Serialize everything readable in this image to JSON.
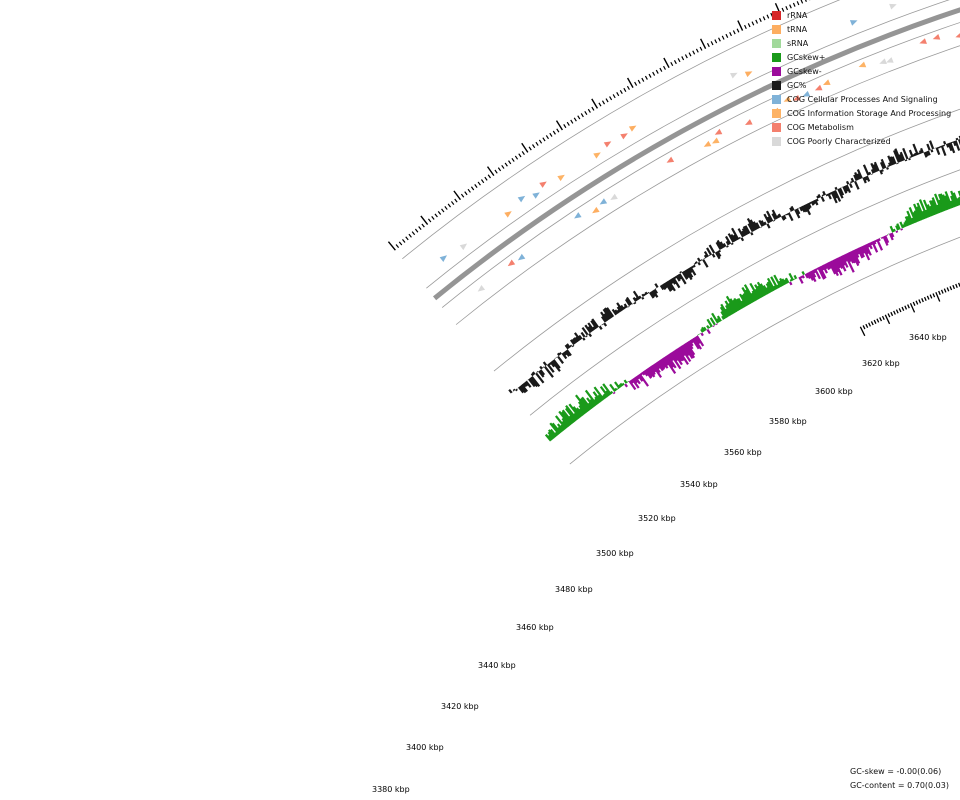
{
  "legend": [
    {
      "label": "rRNA",
      "color": "#d62728"
    },
    {
      "label": "tRNA",
      "color": "#fdae61"
    },
    {
      "label": "sRNA",
      "color": "#a1d99b"
    },
    {
      "label": "GCskew+",
      "color": "#1a9a1a"
    },
    {
      "label": "GCskew-",
      "color": "#9b0b9b"
    },
    {
      "label": "GC%",
      "color": "#1a1a1a"
    },
    {
      "label": "COG Cellular Processes And Signaling",
      "color": "#7fb2d8"
    },
    {
      "label": "COG Information Storage And Processing",
      "color": "#fdb366"
    },
    {
      "label": "COG Metabolism",
      "color": "#f4806e"
    },
    {
      "label": "COG Poorly Characterized",
      "color": "#d9d9d9"
    }
  ],
  "stats": {
    "gc_skew": "GC-skew = -0.00(0.06)",
    "gc_content": "GC-content = 0.70(0.03)"
  },
  "axis_labels": [
    "3380 kbp",
    "3400 kbp",
    "3420 kbp",
    "3440 kbp",
    "3460 kbp",
    "3480 kbp",
    "3500 kbp",
    "3520 kbp",
    "3540 kbp",
    "3560 kbp",
    "3580 kbp",
    "3600 kbp",
    "3620 kbp",
    "3640 kbp"
  ],
  "colors": {
    "ring": "#9a9a9a",
    "backbone": "#7a7a7a",
    "tick": "#000000"
  }
}
